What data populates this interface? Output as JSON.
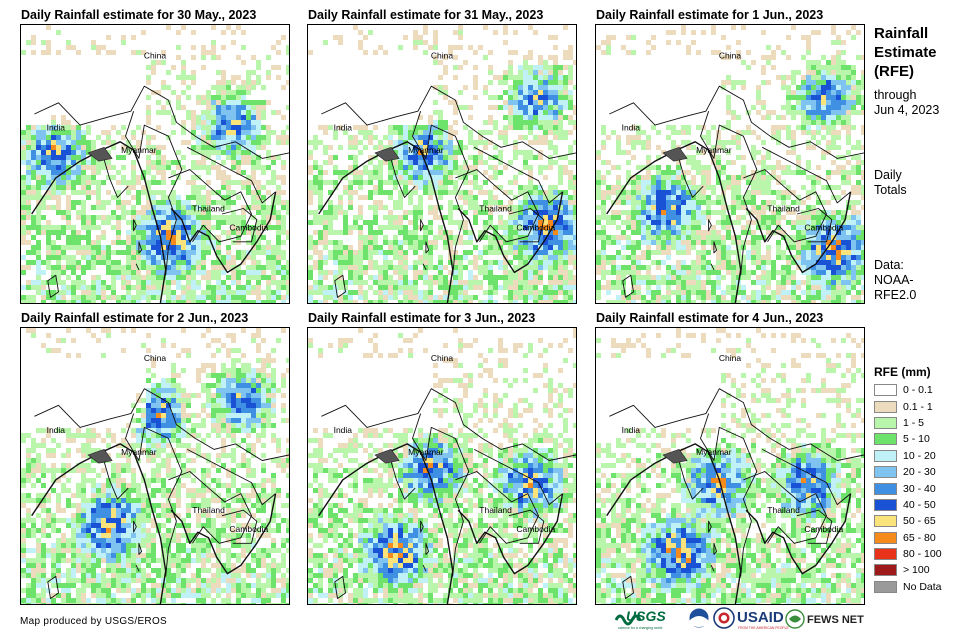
{
  "panels": [
    {
      "title": "Daily Rainfall estimate for 30 May., 2023",
      "seed": 11,
      "heavy": [
        [
          0.12,
          0.45
        ],
        [
          0.78,
          0.35
        ],
        [
          0.55,
          0.75
        ]
      ]
    },
    {
      "title": "Daily Rainfall estimate for 31 May., 2023",
      "seed": 23,
      "heavy": [
        [
          0.85,
          0.25
        ],
        [
          0.42,
          0.45
        ],
        [
          0.88,
          0.72
        ]
      ]
    },
    {
      "title": "Daily Rainfall estimate for 1 Jun., 2023",
      "seed": 37,
      "heavy": [
        [
          0.25,
          0.65
        ],
        [
          0.85,
          0.25
        ],
        [
          0.88,
          0.8
        ]
      ]
    },
    {
      "title": "Daily Rainfall estimate for 2 Jun., 2023",
      "seed": 41,
      "heavy": [
        [
          0.32,
          0.7
        ],
        [
          0.5,
          0.3
        ],
        [
          0.82,
          0.25
        ]
      ]
    },
    {
      "title": "Daily Rainfall estimate for 3 Jun., 2023",
      "seed": 53,
      "heavy": [
        [
          0.32,
          0.8
        ],
        [
          0.45,
          0.5
        ],
        [
          0.82,
          0.55
        ]
      ]
    },
    {
      "title": "Daily Rainfall estimate for 4 Jun., 2023",
      "seed": 67,
      "heavy": [
        [
          0.78,
          0.55
        ],
        [
          0.45,
          0.55
        ],
        [
          0.3,
          0.8
        ]
      ]
    }
  ],
  "map_labels": {
    "china": "China",
    "india": "India",
    "myanmar": "Myanmar",
    "thailand": "Thailand",
    "cambodia": "Cambodia"
  },
  "side": {
    "title_line1": "Rainfall",
    "title_line2": "Estimate",
    "title_line3": "(RFE)",
    "through_line1": "through",
    "through_line2": "Jun 4, 2023",
    "daily_line1": "Daily",
    "daily_line2": "Totals",
    "data_line1": "Data:",
    "data_line2": "NOAA-",
    "data_line3": "RFE2.0"
  },
  "legend": {
    "title": "RFE (mm)",
    "items": [
      {
        "label": "0 - 0.1",
        "color": "#ffffff"
      },
      {
        "label": "0.1 - 1",
        "color": "#ecdcbd"
      },
      {
        "label": "1 - 5",
        "color": "#b9f5ab"
      },
      {
        "label": "5 - 10",
        "color": "#6ee36b"
      },
      {
        "label": "10 - 20",
        "color": "#bff1f7"
      },
      {
        "label": "20 - 30",
        "color": "#7fc3f1"
      },
      {
        "label": "30 - 40",
        "color": "#3f8fe3"
      },
      {
        "label": "40 - 50",
        "color": "#1a52d5"
      },
      {
        "label": "50 - 65",
        "color": "#fbe37b"
      },
      {
        "label": "65 - 80",
        "color": "#f58b1c"
      },
      {
        "label": "80 - 100",
        "color": "#e8321a"
      },
      {
        "label": "> 100",
        "color": "#9f1b1b"
      },
      {
        "label": "No Data",
        "color": "#9a9a9a"
      }
    ]
  },
  "credit": "Map produced by USGS/EROS",
  "logos": {
    "usgs": "USGS",
    "usgs_tagline": "science for a changing world",
    "usaid": "USAID",
    "usaid_tagline": "FROM THE AMERICAN PEOPLE",
    "fewsnet": "FEWS NET"
  }
}
